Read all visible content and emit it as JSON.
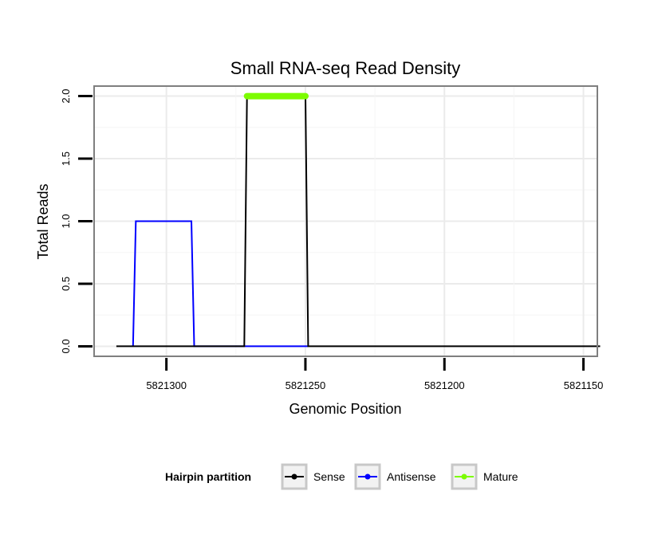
{
  "chart_data": {
    "type": "line",
    "title": "Small RNA-seq Read Density",
    "xlabel": "Genomic Position",
    "ylabel": "Total Reads",
    "x_reversed": true,
    "xlim": [
      5821326,
      5821145
    ],
    "ylim": [
      -0.08,
      2.08
    ],
    "x_ticks": [
      5821300,
      5821250,
      5821200,
      5821150
    ],
    "x_tick_labels": [
      "5821300",
      "5821250",
      "5821200",
      "5821150"
    ],
    "y_ticks": [
      0.0,
      0.5,
      1.0,
      1.5,
      2.0
    ],
    "y_tick_labels": [
      "0.0",
      "0.5",
      "1.0",
      "1.5",
      "2.0"
    ],
    "grid": true,
    "legend_position": "bottom",
    "legend_title": "Hairpin partition",
    "series": [
      {
        "name": "Sense",
        "color": "#000000",
        "x": [
          5821318,
          5821272,
          5821271,
          5821250,
          5821249,
          5821144
        ],
        "y": [
          0,
          0,
          2,
          2,
          0,
          0
        ]
      },
      {
        "name": "Antisense",
        "color": "#0000ff",
        "x": [
          5821312,
          5821311,
          5821291,
          5821290,
          5821249
        ],
        "y": [
          0,
          1,
          1,
          0,
          0
        ]
      },
      {
        "name": "Mature",
        "color": "#7cfc00",
        "x": [
          5821271,
          5821250
        ],
        "y": [
          2,
          2
        ]
      }
    ]
  }
}
